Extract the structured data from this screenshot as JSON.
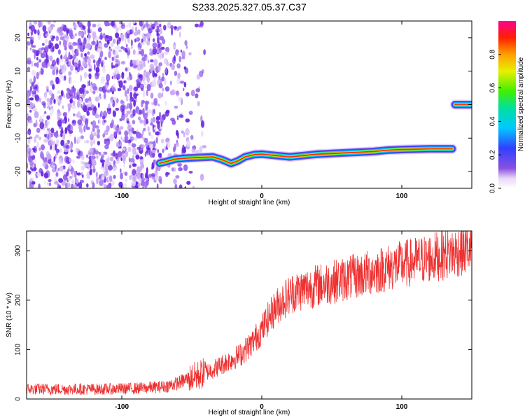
{
  "title": "S233.2025.327.05.37.C37",
  "colors": {
    "axis": "#000000",
    "snr_line": "#ee3030",
    "noise": "#7a3cd8"
  },
  "chart_data": [
    {
      "type": "heatmap",
      "name": "spectrogram",
      "xlabel": "Height of straight line (km)",
      "ylabel": "Frequency (Hz)",
      "xlim": [
        -168,
        150
      ],
      "ylim": [
        -25,
        25
      ],
      "x_ticks": [
        -100,
        0,
        100
      ],
      "y_ticks": [
        -20,
        -10,
        0,
        10,
        20
      ],
      "noise_region_x": [
        -168,
        -52
      ],
      "ridge": [
        {
          "x": -73,
          "y": -17.5
        },
        {
          "x": -68,
          "y": -17
        },
        {
          "x": -62,
          "y": -16.3
        },
        {
          "x": -55,
          "y": -16
        },
        {
          "x": -45,
          "y": -15.8
        },
        {
          "x": -35,
          "y": -15.6
        },
        {
          "x": -28,
          "y": -16.5
        },
        {
          "x": -22,
          "y": -17.6
        },
        {
          "x": -17,
          "y": -16.8
        },
        {
          "x": -12,
          "y": -15.6
        },
        {
          "x": -5,
          "y": -14.9
        },
        {
          "x": 0,
          "y": -14.8
        },
        {
          "x": 10,
          "y": -15.2
        },
        {
          "x": 20,
          "y": -15.6
        },
        {
          "x": 30,
          "y": -15.2
        },
        {
          "x": 40,
          "y": -14.8
        },
        {
          "x": 50,
          "y": -14.6
        },
        {
          "x": 60,
          "y": -14.4
        },
        {
          "x": 70,
          "y": -14.2
        },
        {
          "x": 80,
          "y": -14.0
        },
        {
          "x": 90,
          "y": -13.6
        },
        {
          "x": 100,
          "y": -13.4
        },
        {
          "x": 110,
          "y": -13.3
        },
        {
          "x": 120,
          "y": -13.2
        },
        {
          "x": 130,
          "y": -13.2
        },
        {
          "x": 136,
          "y": -13.2
        }
      ],
      "segment2": [
        {
          "x": 138,
          "y": 0
        },
        {
          "x": 149,
          "y": 0
        }
      ],
      "colorbar": {
        "label": "Normalized spectral amplitude",
        "range": [
          0,
          1
        ],
        "ticks": [
          "0.0",
          "0.2",
          "0.4",
          "0.6",
          "0.8"
        ],
        "tick_values": [
          0,
          0.2,
          0.4,
          0.6,
          0.8
        ]
      }
    },
    {
      "type": "line",
      "name": "snr",
      "xlabel": "Height of straight line (km)",
      "ylabel": "SNR (10 * v/v)",
      "xlim": [
        -168,
        150
      ],
      "ylim": [
        0,
        340
      ],
      "x_ticks": [
        -100,
        0,
        100
      ],
      "y_ticks": [
        0,
        100,
        200,
        300
      ],
      "trend": [
        [
          -168,
          20
        ],
        [
          -140,
          20
        ],
        [
          -110,
          20
        ],
        [
          -85,
          22
        ],
        [
          -70,
          25
        ],
        [
          -60,
          32
        ],
        [
          -52,
          42
        ],
        [
          -45,
          48
        ],
        [
          -35,
          60
        ],
        [
          -25,
          75
        ],
        [
          -15,
          90
        ],
        [
          -8,
          110
        ],
        [
          0,
          140
        ],
        [
          5,
          165
        ],
        [
          10,
          185
        ],
        [
          15,
          200
        ],
        [
          22,
          215
        ],
        [
          30,
          222
        ],
        [
          40,
          230
        ],
        [
          55,
          240
        ],
        [
          70,
          250
        ],
        [
          85,
          262
        ],
        [
          100,
          272
        ],
        [
          115,
          282
        ],
        [
          130,
          292
        ],
        [
          150,
          305
        ]
      ]
    }
  ]
}
